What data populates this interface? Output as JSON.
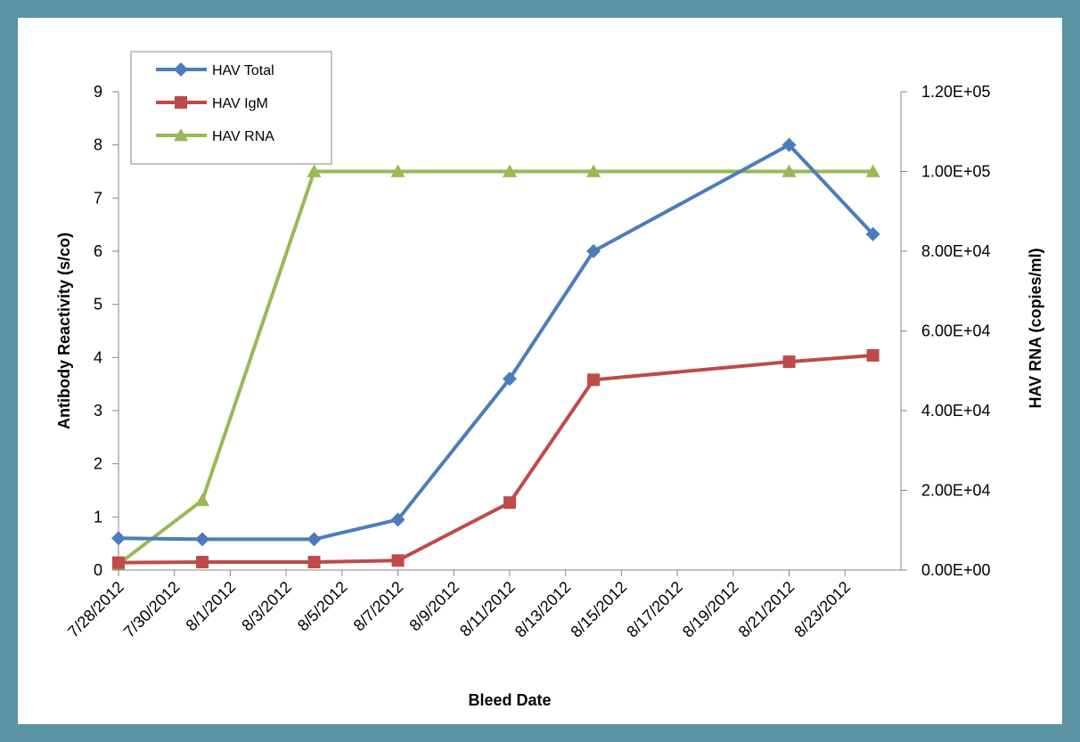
{
  "chart_data": {
    "type": "line",
    "title": "",
    "xlabel": "Bleed Date",
    "ylabel": "Antibody Reactivity (s/co)",
    "y2label": "HAV RNA (copies/ml)",
    "xlim": [
      "7/28/2012",
      "8/25/2012"
    ],
    "ylim": [
      0,
      9
    ],
    "y2lim": [
      0,
      120000
    ],
    "x_ticks": [
      "7/28/2012",
      "7/30/2012",
      "8/1/2012",
      "8/3/2012",
      "8/5/2012",
      "8/7/2012",
      "8/9/2012",
      "8/11/2012",
      "8/13/2012",
      "8/15/2012",
      "8/17/2012",
      "8/19/2012",
      "8/21/2012",
      "8/23/2012"
    ],
    "y_ticks": [
      "0",
      "1",
      "2",
      "3",
      "4",
      "5",
      "6",
      "7",
      "8",
      "9"
    ],
    "y2_ticks": [
      "0.00E+00",
      "2.00E+04",
      "4.00E+04",
      "6.00E+04",
      "8.00E+04",
      "1.00E+05",
      "1.20E+05"
    ],
    "legend_position": "top-left",
    "grid": false,
    "series": [
      {
        "name": "HAV Total",
        "axis": "left",
        "color": "#4a7ebb",
        "marker": "diamond",
        "x": [
          "7/28/2012",
          "7/31/2012",
          "8/4/2012",
          "8/7/2012",
          "8/11/2012",
          "8/14/2012",
          "8/21/2012",
          "8/24/2012"
        ],
        "values": [
          0.6,
          0.58,
          0.58,
          0.95,
          3.6,
          6.0,
          8.0,
          6.32
        ]
      },
      {
        "name": "HAV IgM",
        "axis": "left",
        "color": "#be4b48",
        "marker": "square",
        "x": [
          "7/28/2012",
          "7/31/2012",
          "8/4/2012",
          "8/7/2012",
          "8/11/2012",
          "8/14/2012",
          "8/21/2012",
          "8/24/2012"
        ],
        "values": [
          0.14,
          0.15,
          0.15,
          0.18,
          1.27,
          3.58,
          3.92,
          4.04
        ]
      },
      {
        "name": "HAV RNA",
        "axis": "right",
        "color": "#98b954",
        "marker": "triangle",
        "x": [
          "7/28/2012",
          "7/31/2012",
          "8/4/2012",
          "8/7/2012",
          "8/11/2012",
          "8/14/2012",
          "8/21/2012",
          "8/24/2012"
        ],
        "values": [
          1500,
          17500,
          100000,
          100000,
          100000,
          100000,
          100000,
          100000
        ]
      }
    ]
  }
}
